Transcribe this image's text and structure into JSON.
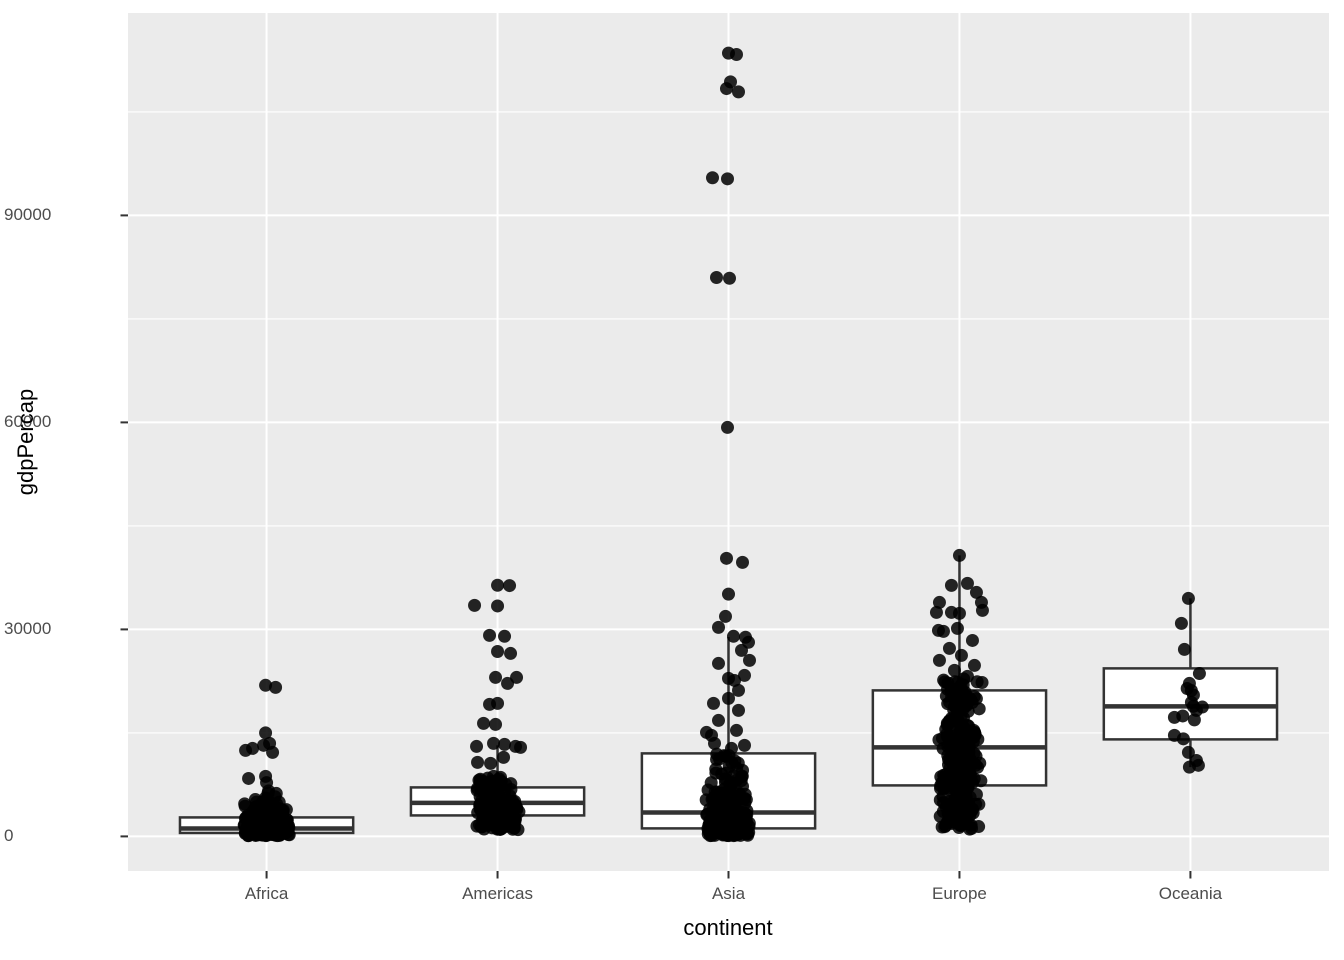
{
  "chart_data": {
    "type": "boxplot-jitter",
    "title": "",
    "xlabel": "continent",
    "ylabel": "gdpPercap",
    "categories": [
      "Africa",
      "Americas",
      "Asia",
      "Europe",
      "Oceania"
    ],
    "y_axis": {
      "ticks": [
        0,
        30000,
        60000,
        90000
      ],
      "tick_labels": [
        "0",
        "30000",
        "60000",
        "90000"
      ],
      "minor_ticks": [
        15000,
        45000,
        75000,
        105000
      ],
      "range": [
        -5000,
        119300
      ],
      "grid": true,
      "legend": "none"
    },
    "boxes": [
      {
        "category": "Africa",
        "q1": 500,
        "median": 1150,
        "q3": 2750,
        "whisker_low": 250,
        "whisker_high": 5650
      },
      {
        "category": "Americas",
        "q1": 3040,
        "median": 4860,
        "q3": 7100,
        "whisker_low": 1200,
        "whisker_high": 13200
      },
      {
        "category": "Asia",
        "q1": 1160,
        "median": 3470,
        "q3": 12030,
        "whisker_low": 330,
        "whisker_high": 28900
      },
      {
        "category": "Europe",
        "q1": 7390,
        "median": 12900,
        "q3": 21160,
        "whisker_low": 975,
        "whisker_high": 40720
      },
      {
        "category": "Oceania",
        "q1": 14060,
        "median": 18840,
        "q3": 24350,
        "whisker_low": 10040,
        "whisker_high": 34490
      }
    ],
    "jitter_points": {
      "Africa": {
        "explicit": [
          [
            -1,
            21900
          ],
          [
            9,
            21600
          ],
          [
            -1,
            15000
          ],
          [
            3,
            13480
          ],
          [
            -3,
            13200
          ],
          [
            -14,
            12750
          ],
          [
            -21,
            12460
          ],
          [
            6,
            12170
          ],
          [
            -1,
            8700
          ],
          [
            0,
            7800
          ],
          [
            -18,
            8400
          ],
          [
            2,
            6600
          ]
        ],
        "clusters": [
          [
            4200,
            6600,
            18,
            1.2
          ],
          [
            1800,
            4200,
            120,
            1.15
          ],
          [
            100,
            1800,
            300,
            0.85
          ]
        ]
      },
      "Americas": {
        "explicit": [
          [
            0,
            36400
          ],
          [
            12,
            36350
          ],
          [
            -23,
            33480
          ],
          [
            0,
            33400
          ],
          [
            -8,
            29130
          ],
          [
            7,
            29000
          ],
          [
            0,
            26800
          ],
          [
            13,
            26520
          ],
          [
            -2,
            23040
          ],
          [
            10,
            22170
          ],
          [
            19,
            23040
          ],
          [
            -8,
            19130
          ],
          [
            0,
            19280
          ],
          [
            -14,
            16380
          ],
          [
            -2,
            16230
          ],
          [
            -21,
            13040
          ],
          [
            -4,
            13480
          ],
          [
            7,
            13330
          ],
          [
            18,
            13040
          ],
          [
            23,
            12900
          ],
          [
            6,
            11450
          ],
          [
            -20,
            10730
          ],
          [
            -7,
            10580
          ],
          [
            -4,
            8700
          ],
          [
            3,
            8550
          ]
        ],
        "clusters": [
          [
            5200,
            8500,
            55,
            1.1
          ],
          [
            2600,
            5200,
            130,
            1.0
          ],
          [
            900,
            2600,
            70,
            0.95
          ]
        ]
      },
      "Asia": {
        "explicit": [
          [
            0,
            113520
          ],
          [
            8,
            113320
          ],
          [
            2,
            109350
          ],
          [
            -2,
            108380
          ],
          [
            10,
            107900
          ],
          [
            -16,
            95460
          ],
          [
            -1,
            95300
          ],
          [
            -12,
            81000
          ],
          [
            1,
            80890
          ],
          [
            -1,
            59270
          ],
          [
            -2,
            40300
          ],
          [
            14,
            39710
          ],
          [
            0,
            35110
          ],
          [
            -3,
            31880
          ],
          [
            -10,
            30290
          ],
          [
            5,
            29000
          ],
          [
            17,
            28860
          ],
          [
            20,
            28130
          ],
          [
            13,
            26960
          ],
          [
            21,
            25510
          ],
          [
            -10,
            25070
          ],
          [
            16,
            23330
          ],
          [
            0,
            22900
          ],
          [
            6,
            22600
          ],
          [
            10,
            21160
          ],
          [
            -15,
            19280
          ],
          [
            0,
            20000
          ],
          [
            10,
            18260
          ],
          [
            -10,
            16810
          ],
          [
            -22,
            15070
          ],
          [
            -17,
            14640
          ],
          [
            8,
            15360
          ],
          [
            -14,
            13480
          ],
          [
            3,
            12750
          ],
          [
            16,
            13190
          ]
        ],
        "clusters": [
          [
            5800,
            12000,
            40,
            1.2
          ],
          [
            2200,
            5800,
            85,
            1.1
          ],
          [
            100,
            2200,
            200,
            0.85
          ]
        ]
      },
      "Europe": {
        "explicit": [
          [
            0,
            40720
          ],
          [
            -8,
            36380
          ],
          [
            8,
            36670
          ],
          [
            17,
            35360
          ],
          [
            22,
            33910
          ],
          [
            23,
            32750
          ],
          [
            -20,
            33910
          ],
          [
            -23,
            32460
          ],
          [
            -8,
            32460
          ],
          [
            0,
            32320
          ],
          [
            -21,
            29850
          ],
          [
            -16,
            29710
          ],
          [
            -2,
            30140
          ],
          [
            13,
            28400
          ],
          [
            -10,
            27250
          ],
          [
            2,
            26230
          ],
          [
            -20,
            25510
          ],
          [
            15,
            24780
          ],
          [
            -5,
            24060
          ],
          [
            8,
            23190
          ]
        ],
        "clusters": [
          [
            15000,
            23000,
            70,
            1.0
          ],
          [
            8000,
            15000,
            110,
            1.0
          ],
          [
            3500,
            8000,
            80,
            1.0
          ],
          [
            1000,
            3500,
            35,
            0.95
          ]
        ]
      },
      "Oceania": {
        "explicit": [
          [
            -2,
            34490
          ],
          [
            -9,
            30870
          ],
          [
            -6,
            27100
          ],
          [
            9,
            23600
          ],
          [
            -1,
            22170
          ],
          [
            3,
            20500
          ],
          [
            1,
            19420
          ],
          [
            3,
            18840
          ],
          [
            6,
            18260
          ],
          [
            -16,
            17250
          ],
          [
            -16,
            14640
          ],
          [
            -2,
            12170
          ],
          [
            6,
            11000
          ],
          [
            8,
            10300
          ],
          [
            -1,
            10040
          ]
        ],
        "clusters": [
          [
            14000,
            22000,
            6,
            1.0
          ]
        ]
      }
    },
    "style": {
      "panel_bg": "#EBEBEB",
      "grid_color": "#FFFFFF",
      "box_fill": "#FFFFFF",
      "box_stroke": "#333333",
      "point_color": "#000000",
      "point_alpha": 0.85,
      "axis_text_color": "#4D4D4D",
      "axis_title_color": "#000000",
      "tick_color": "#333333"
    }
  }
}
